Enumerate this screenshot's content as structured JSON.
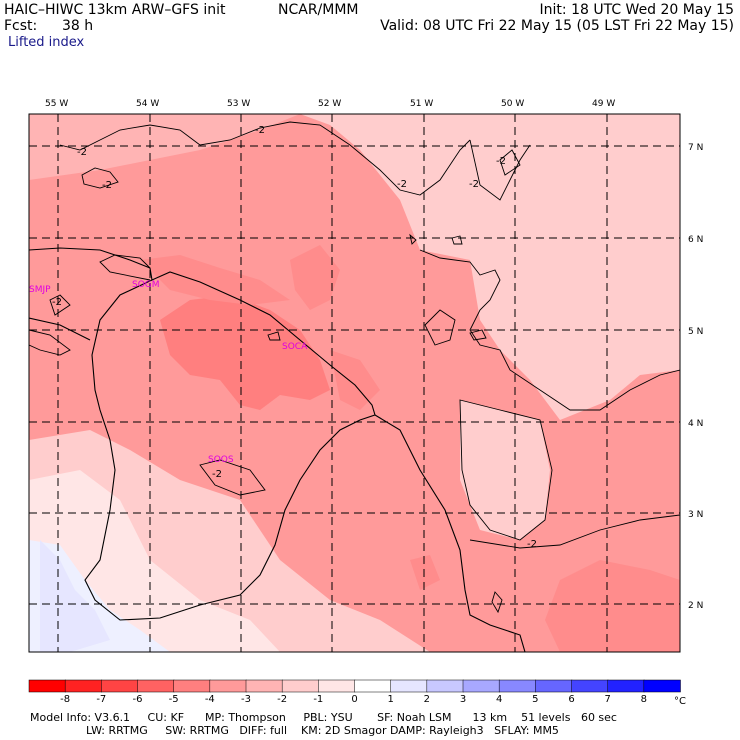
{
  "header": {
    "model": "HAIC–HIWC 13km ARW–GFS init",
    "org": "NCAR/MMM",
    "forecast_label": "Fcst:",
    "forecast_hours": "38 h",
    "init": "Init: 18 UTC Wed 20 May 15",
    "valid": "Valid: 08 UTC Fri 22 May 15 (05 LST Fri 22 May 15)",
    "field": "Lifted index"
  },
  "map": {
    "lon_labels": [
      "55 W",
      "54 W",
      "53 W",
      "52 W",
      "51 W",
      "50 W",
      "49 W"
    ],
    "lat_labels": [
      "7 N",
      "6 N",
      "5 N",
      "4 N",
      "3 N",
      "2 N"
    ],
    "stations": [
      "SMJP",
      "SOGM",
      "SOCA",
      "SOOS"
    ],
    "contour_label": "-2"
  },
  "colorbar": {
    "labels": [
      "-8",
      "-7",
      "-6",
      "-5",
      "-4",
      "-3",
      "-2",
      "-1",
      "0",
      "1",
      "2",
      "3",
      "4",
      "5",
      "6",
      "7",
      "8"
    ],
    "unit": "°C",
    "colors": [
      "#ff0000",
      "#ff2222",
      "#ff4444",
      "#ff6262",
      "#ff7f7f",
      "#ff9a9a",
      "#ffb4b4",
      "#ffcdcd",
      "#ffe6e6",
      "#ffffff",
      "#e6e6ff",
      "#c8c8ff",
      "#a8a8ff",
      "#8888ff",
      "#6666ff",
      "#4444ff",
      "#2222ff",
      "#0000ff"
    ]
  },
  "footer": {
    "line1": "Model Info: V3.6.1     CU: KF      MP: Thompson     PBL: YSU       SF: Noah LSM      13 km    51 levels   60 sec",
    "line2": "                LW: RRTMG     SW: RRTMG   DIFF: full    KM: 2D Smagor DAMP: Rayleigh3   SFLAY: MM5"
  }
}
